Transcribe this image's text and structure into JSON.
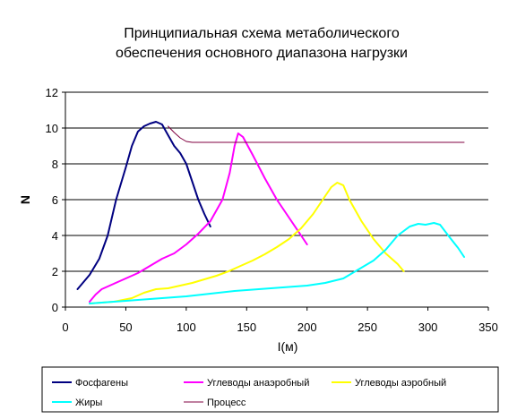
{
  "chart_data": {
    "type": "line",
    "title": "Принципиальная схема метаболического обеспечения основного диапазона нагрузки",
    "title_lines": [
      "Принципиальная схема метаболического",
      "обеспечения основного диапазона нагрузки"
    ],
    "xlabel": "I(м)",
    "ylabel": "N",
    "xlim": [
      0,
      350
    ],
    "ylim": [
      0,
      12
    ],
    "x_ticks": [
      0,
      50,
      100,
      150,
      200,
      250,
      300,
      350
    ],
    "y_ticks": [
      0,
      2,
      4,
      6,
      8,
      10,
      12
    ],
    "grid": "horizontal",
    "legend_position": "bottom",
    "series": [
      {
        "name": "Фосфагены",
        "color": "#000080",
        "x": [
          10,
          20,
          28,
          35,
          42,
          50,
          55,
          60,
          65,
          70,
          75,
          80,
          85,
          90,
          95,
          100,
          105,
          110,
          115,
          120
        ],
        "y": [
          1.0,
          1.8,
          2.7,
          4.0,
          6.0,
          7.8,
          9.0,
          9.8,
          10.1,
          10.25,
          10.35,
          10.2,
          9.6,
          9.0,
          8.6,
          8.0,
          7.0,
          6.0,
          5.2,
          4.5
        ]
      },
      {
        "name": "Углеводы анаэробный",
        "color": "#ff00ff",
        "x": [
          20,
          25,
          30,
          40,
          50,
          60,
          70,
          80,
          90,
          100,
          110,
          120,
          130,
          136,
          140,
          143,
          147,
          155,
          165,
          175,
          185,
          195,
          200
        ],
        "y": [
          0.3,
          0.7,
          1.0,
          1.3,
          1.6,
          1.9,
          2.3,
          2.7,
          3.0,
          3.5,
          4.1,
          4.8,
          6.0,
          7.5,
          9.0,
          9.7,
          9.5,
          8.5,
          7.2,
          6.0,
          5.0,
          4.0,
          3.5
        ]
      },
      {
        "name": "Углеводы аэробный",
        "color": "#ffff00",
        "x": [
          20,
          40,
          55,
          65,
          75,
          85,
          95,
          105,
          115,
          125,
          135,
          145,
          155,
          165,
          175,
          185,
          195,
          205,
          215,
          220,
          225,
          230,
          235,
          245,
          255,
          265,
          275,
          280
        ],
        "y": [
          0.2,
          0.3,
          0.5,
          0.8,
          1.0,
          1.05,
          1.2,
          1.35,
          1.55,
          1.75,
          2.0,
          2.3,
          2.6,
          2.95,
          3.35,
          3.8,
          4.4,
          5.2,
          6.2,
          6.7,
          6.95,
          6.8,
          6.0,
          4.8,
          3.8,
          3.0,
          2.4,
          2.0
        ]
      },
      {
        "name": "Жиры",
        "color": "#00ffff",
        "x": [
          20,
          40,
          60,
          80,
          100,
          120,
          140,
          160,
          180,
          200,
          215,
          230,
          245,
          255,
          265,
          275,
          285,
          292,
          298,
          305,
          310,
          318,
          325,
          330
        ],
        "y": [
          0.2,
          0.3,
          0.4,
          0.5,
          0.6,
          0.75,
          0.9,
          1.0,
          1.1,
          1.2,
          1.35,
          1.6,
          2.2,
          2.6,
          3.2,
          4.0,
          4.5,
          4.65,
          4.6,
          4.7,
          4.6,
          3.9,
          3.3,
          2.8
        ]
      },
      {
        "name": "Процесс",
        "color": "#800040",
        "x": [
          85,
          90,
          95,
          100,
          105,
          150,
          200,
          250,
          300,
          330
        ],
        "y": [
          10.1,
          9.75,
          9.45,
          9.25,
          9.2,
          9.2,
          9.2,
          9.2,
          9.2,
          9.2
        ]
      }
    ]
  }
}
